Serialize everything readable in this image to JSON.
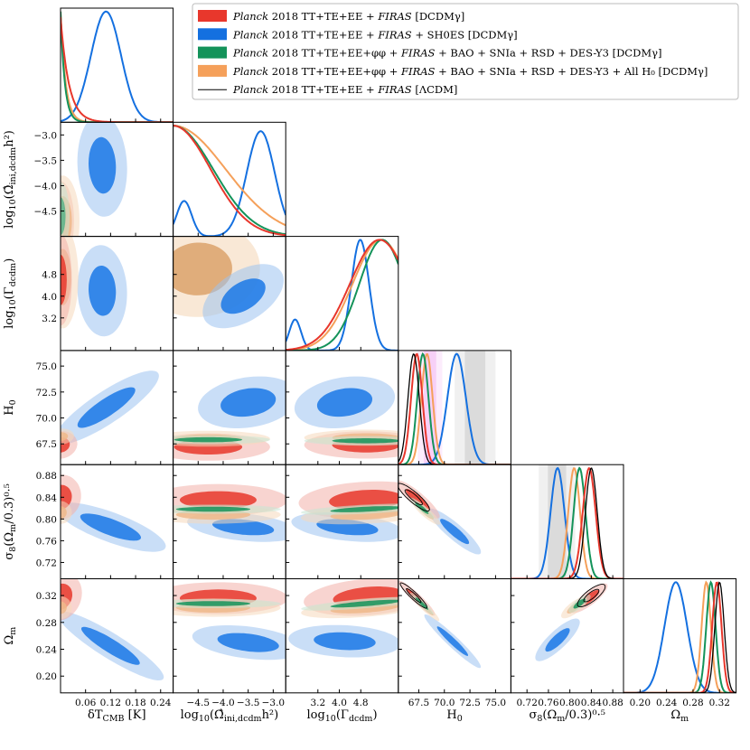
{
  "chart_data": {
    "type": "triangle-corner",
    "parameters": [
      {
        "name": "dT_CMB",
        "label": "δT_CMB [K]",
        "range": [
          0.0,
          0.27
        ],
        "ticks": [
          0.06,
          0.12,
          0.18,
          0.24
        ],
        "tick_labels": [
          "0.06",
          "0.12",
          "0.18",
          "0.24"
        ]
      },
      {
        "name": "log10_Omega_ini",
        "label": "log10(Ω̂_ini,dcdm h²)",
        "range": [
          -5.0,
          -2.75
        ],
        "ticks": [
          -4.5,
          -4.0,
          -3.5,
          -3.0
        ],
        "tick_labels": [
          "−4.5",
          "−4.0",
          "−3.5",
          "−3.0"
        ]
      },
      {
        "name": "log10_Gamma",
        "label": "log10(Γ_dcdm)",
        "range": [
          2.0,
          6.2
        ],
        "ticks": [
          3.2,
          4.0,
          4.8
        ],
        "tick_labels": [
          "3.2",
          "4.0",
          "4.8"
        ]
      },
      {
        "name": "H0",
        "label": "H0",
        "range": [
          65.5,
          76.5
        ],
        "ticks": [
          67.5,
          70.0,
          72.5,
          75.0
        ],
        "tick_labels": [
          "67.5",
          "70.0",
          "72.5",
          "75.0"
        ]
      },
      {
        "name": "sigma8_Om",
        "label": "σ8(Ωm/0.3)^0.5",
        "range": [
          0.69,
          0.9
        ],
        "ticks": [
          0.72,
          0.76,
          0.8,
          0.84,
          0.88
        ],
        "tick_labels": [
          "0.72",
          "0.76",
          "0.80",
          "0.84",
          "0.88"
        ]
      },
      {
        "name": "Omega_m",
        "label": "Ωm",
        "range": [
          0.175,
          0.345
        ],
        "ticks": [
          0.2,
          0.24,
          0.28,
          0.32
        ],
        "tick_labels": [
          "0.20",
          "0.24",
          "0.28",
          "0.32"
        ]
      }
    ],
    "series": [
      {
        "name": "Planck 2018 TT+TE+EE + FIRAS [DCDMγ]",
        "color": "#e8372c",
        "means": {
          "dT_CMB": 0.0,
          "log10_Omega_ini": -4.9,
          "log10_Gamma": 5.6,
          "H0": 67.3,
          "sigma8_Om": 0.836,
          "Omega_m": 0.316
        }
      },
      {
        "name": "Planck 2018 TT+TE+EE + FIRAS + SH0ES [DCDMγ]",
        "color": "#1470e0",
        "means": {
          "dT_CMB": 0.11,
          "log10_Omega_ini": -3.25,
          "log10_Gamma": 4.8,
          "H0": 71.2,
          "sigma8_Om": 0.777,
          "Omega_m": 0.254
        }
      },
      {
        "name": "Planck 2018 TT+TE+EE+φφ + FIRAS + BAO + SNIa + RSD + DES-Y3 [DCDMγ]",
        "color": "#14935a",
        "means": {
          "dT_CMB": 0.0,
          "log10_Omega_ini": -4.9,
          "log10_Gamma": 5.6,
          "H0": 67.9,
          "sigma8_Om": 0.818,
          "Omega_m": 0.307
        }
      },
      {
        "name": "Planck 2018 TT+TE+EE+φφ + FIRAS + BAO + SNIa + RSD + DES-Y3 + All H0 [DCDMγ]",
        "color": "#f5a05a",
        "means": {
          "dT_CMB": 0.0,
          "log10_Omega_ini": -4.8,
          "log10_Gamma": 5.5,
          "H0": 68.3,
          "sigma8_Om": 0.808,
          "Omega_m": 0.3
        }
      },
      {
        "name": "Planck 2018 TT+TE+EE + FIRAS [ΛCDM]",
        "color": "#000000",
        "means": {
          "H0": 67.0,
          "sigma8_Om": 0.838,
          "Omega_m": 0.32
        }
      }
    ],
    "legend": {
      "position": "top-right",
      "entries": [
        {
          "italic": "Planck",
          "text": " 2018 TT+TE+EE + ",
          "italic2": "FIRAS",
          "text2": " [DCDMγ]",
          "color": "#e8372c",
          "kind": "patch"
        },
        {
          "italic": "Planck",
          "text": " 2018 TT+TE+EE + ",
          "italic2": "FIRAS",
          "text2": " + SH0ES [DCDMγ]",
          "color": "#1470e0",
          "kind": "patch"
        },
        {
          "italic": "Planck",
          "text": " 2018 TT+TE+EE+φφ + ",
          "italic2": "FIRAS",
          "text2": " + BAO + SNIa + RSD + DES-Y3 [DCDMγ]",
          "color": "#14935a",
          "kind": "patch"
        },
        {
          "italic": "Planck",
          "text": " 2018 TT+TE+EE+φφ + ",
          "italic2": "FIRAS",
          "text2": " + BAO + SNIa + RSD + DES-Y3 + All H₀ [DCDMγ]",
          "color": "#f5a05a",
          "kind": "patch"
        },
        {
          "italic": "Planck",
          "text": " 2018 TT+TE+EE + ",
          "italic2": "FIRAS",
          "text2": " [ΛCDM]",
          "color": "#000000",
          "kind": "line"
        }
      ]
    },
    "bands": {
      "H0": [
        {
          "center": 68.6,
          "half_widths": [
            0.6,
            1.2
          ],
          "color": "#e040e0"
        },
        {
          "center": 73.0,
          "half_widths": [
            1.0,
            2.0
          ],
          "color": "#707070"
        }
      ],
      "sigma8_Om": [
        {
          "center": 0.776,
          "half_widths": [
            0.017,
            0.034
          ],
          "color": "#707070"
        }
      ]
    }
  }
}
